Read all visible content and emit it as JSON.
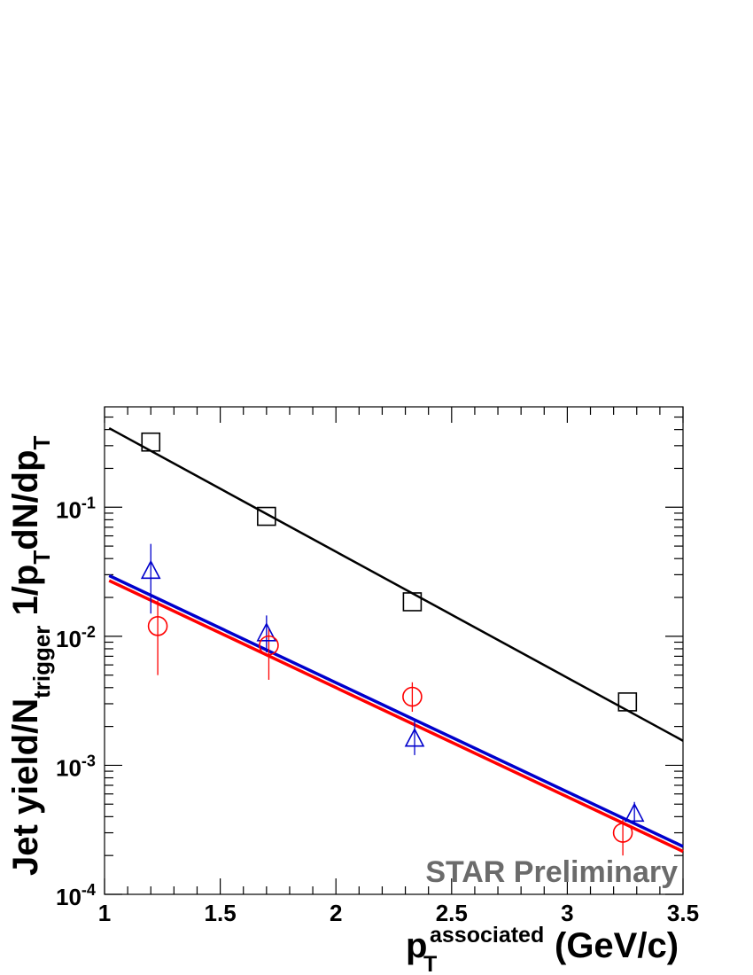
{
  "chart_data": {
    "type": "scatter",
    "title": "",
    "xlim": [
      1,
      3.5
    ],
    "ylim": [
      0.0001,
      0.6
    ],
    "yscale": "log",
    "x_ticks": [
      "1",
      "1.5",
      "2",
      "2.5",
      "3",
      "3.5"
    ],
    "y_ticks": [
      {
        "base": "10",
        "exp": "-4"
      },
      {
        "base": "10",
        "exp": "-3"
      },
      {
        "base": "10",
        "exp": "-2"
      },
      {
        "base": "10",
        "exp": "-1"
      }
    ],
    "xlabel": {
      "main": "p",
      "sub": "T",
      "sup": "associated",
      "unit": "(GeV/c)"
    },
    "ylabel": {
      "part1": "Jet yield/N",
      "sub1": "trigger",
      "part2": " 1/p",
      "sub2": "T",
      "part3": "dN/dp",
      "sub3": "T"
    },
    "annotation": "STAR Preliminary",
    "series": [
      {
        "marker": "open-square",
        "color": "#000000",
        "points": [
          {
            "x": 1.2,
            "y": 0.32
          },
          {
            "x": 1.7,
            "y": 0.085
          },
          {
            "x": 2.33,
            "y": 0.0185
          },
          {
            "x": 3.26,
            "y": 0.0031
          }
        ],
        "fit": {
          "x": [
            1.02,
            3.5
          ],
          "y": [
            0.41,
            0.00155
          ]
        }
      },
      {
        "marker": "open-triangle",
        "color": "#0000cc",
        "points": [
          {
            "x": 1.2,
            "y": 0.032,
            "ylo": 0.015,
            "yhi": 0.052
          },
          {
            "x": 1.7,
            "y": 0.0105,
            "ylo": 0.0075,
            "yhi": 0.0145
          },
          {
            "x": 2.34,
            "y": 0.0016,
            "ylo": 0.0012,
            "yhi": 0.0022
          },
          {
            "x": 3.29,
            "y": 0.00042,
            "ylo": 0.00035,
            "yhi": 0.00052
          }
        ],
        "fit": {
          "x": [
            1.02,
            3.5
          ],
          "y": [
            0.0295,
            0.000235
          ]
        }
      },
      {
        "marker": "open-circle",
        "color": "#ff0000",
        "points": [
          {
            "x": 1.23,
            "y": 0.012,
            "ylo": 0.005,
            "yhi": 0.019
          },
          {
            "x": 1.71,
            "y": 0.0085,
            "ylo": 0.0046,
            "yhi": 0.0115
          },
          {
            "x": 2.33,
            "y": 0.0034,
            "ylo": 0.0026,
            "yhi": 0.0044
          },
          {
            "x": 3.24,
            "y": 0.0003,
            "ylo": 0.0002,
            "yhi": 0.00038
          }
        ],
        "fit": {
          "x": [
            1.02,
            3.5
          ],
          "y": [
            0.027,
            0.000215
          ]
        }
      }
    ]
  }
}
